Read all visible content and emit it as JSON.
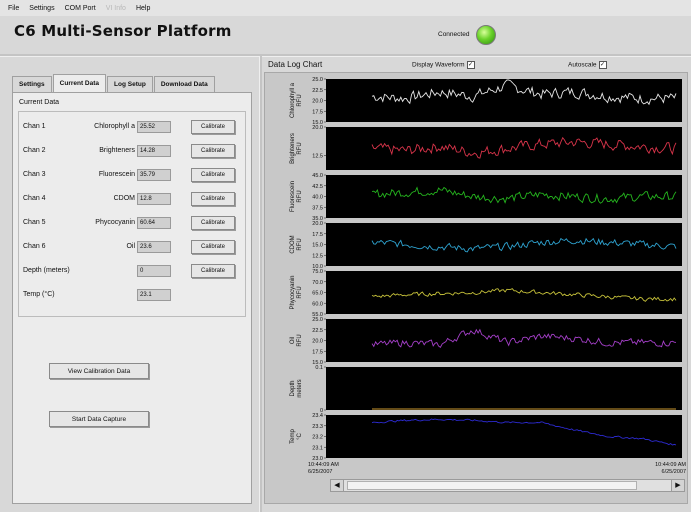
{
  "menu": [
    {
      "label": "File",
      "enabled": true
    },
    {
      "label": "Settings",
      "enabled": true
    },
    {
      "label": "COM Port",
      "enabled": true
    },
    {
      "label": "VI Info",
      "enabled": false
    },
    {
      "label": "Help",
      "enabled": true
    }
  ],
  "app_title": "C6 Multi-Sensor Platform",
  "status": {
    "label": "Connected",
    "led_color": "#4fc21b"
  },
  "tabs": [
    {
      "label": "Settings",
      "active": false
    },
    {
      "label": "Current Data",
      "active": true
    },
    {
      "label": "Log Setup",
      "active": false
    },
    {
      "label": "Download Data",
      "active": false
    }
  ],
  "current_data": {
    "title": "Current Data",
    "calibrate_label": "Calibrate",
    "channels": [
      {
        "chan": "Chan 1",
        "sensor": "Chlorophyll a",
        "value": "25.52",
        "calibrate": true
      },
      {
        "chan": "Chan 2",
        "sensor": "Brighteners",
        "value": "14.28",
        "calibrate": true
      },
      {
        "chan": "Chan 3",
        "sensor": "Fluorescein",
        "value": "35.79",
        "calibrate": true
      },
      {
        "chan": "Chan 4",
        "sensor": "CDOM",
        "value": "12.8",
        "calibrate": true
      },
      {
        "chan": "Chan 5",
        "sensor": "Phycocyanin",
        "value": "60.64",
        "calibrate": true
      },
      {
        "chan": "Chan 6",
        "sensor": "Oil",
        "value": "23.6",
        "calibrate": true
      },
      {
        "chan": "Depth (meters)",
        "sensor": "",
        "value": "0",
        "calibrate": true
      },
      {
        "chan": "Temp (°C)",
        "sensor": "",
        "value": "23.1",
        "calibrate": false
      }
    ],
    "view_calibration_label": "View Calibration Data",
    "start_capture_label": "Start Data Capture"
  },
  "chart": {
    "title": "Data Log Chart",
    "display_waveform_label": "Display Waveform",
    "display_waveform_checked": true,
    "autoscale_label": "Autoscale",
    "autoscale_checked": true,
    "x_start": {
      "time": "10:44:09 AM",
      "date": "6/25/2007"
    },
    "x_end": {
      "time": "10:44:09 AM",
      "date": "6/25/2007"
    }
  },
  "chart_data": {
    "type": "line",
    "series": [
      {
        "name": "Chlorophyll a",
        "unit": "RFU",
        "color": "#e6e6e6",
        "ylim": [
          15,
          25
        ],
        "ticks": [
          "25.0",
          "22.5",
          "20.0",
          "17.5",
          "15.0"
        ],
        "trend": [
          21,
          20.5,
          22,
          21,
          23.5,
          21.5,
          22,
          21,
          20.5,
          20.5
        ],
        "noise": 1.2
      },
      {
        "name": "Brighteners",
        "unit": "RFU",
        "color": "#d8344a",
        "ylim": [
          10,
          20
        ],
        "ticks": [
          "20.0",
          "",
          "12.5",
          ""
        ],
        "trend": [
          15,
          14.5,
          15.5,
          14,
          15,
          16,
          16.5,
          16,
          15.5,
          15
        ],
        "noise": 1.2
      },
      {
        "name": "Fluorescein",
        "unit": "RFU",
        "color": "#25b51e",
        "ylim": [
          35,
          45
        ],
        "ticks": [
          "45.0",
          "42.5",
          "40.0",
          "37.5",
          "35.0"
        ],
        "trend": [
          40.5,
          41,
          41.5,
          40,
          39.5,
          40.5,
          40,
          39.5,
          40,
          40
        ],
        "noise": 1.0
      },
      {
        "name": "CDOM",
        "unit": "RFU",
        "color": "#2ea2cf",
        "ylim": [
          10,
          20
        ],
        "ticks": [
          "20.0",
          "17.5",
          "15.0",
          "12.5",
          "10.0"
        ],
        "trend": [
          15.5,
          15,
          14.5,
          14,
          14.5,
          15.5,
          16,
          15.5,
          15,
          14.5
        ],
        "noise": 0.8
      },
      {
        "name": "Phycocyanin",
        "unit": "RFU",
        "color": "#c7c23a",
        "ylim": [
          55,
          75
        ],
        "ticks": [
          "75.0",
          "70.0",
          "65.0",
          "60.0",
          "55.0"
        ],
        "trend": [
          63,
          64,
          64.5,
          65,
          66,
          65,
          64,
          63,
          62,
          62
        ],
        "noise": 0.9
      },
      {
        "name": "Oil",
        "unit": "RFU",
        "color": "#a43fc8",
        "ylim": [
          15,
          25
        ],
        "ticks": [
          "25.0",
          "22.5",
          "20.0",
          "17.5",
          "15.0"
        ],
        "trend": [
          19,
          19.5,
          19,
          22.5,
          19.5,
          21,
          20.5,
          19.5,
          19.5,
          19.5
        ],
        "noise": 0.8
      },
      {
        "name": "Depth",
        "unit": "meters",
        "color": "#c8962e",
        "ylim": [
          0,
          0.1
        ],
        "ticks": [
          "0.1",
          "0"
        ],
        "trend": [
          0.001,
          0.001,
          0.001,
          0.001,
          0.001,
          0.001,
          0.001,
          0.001,
          0.001,
          0.001
        ],
        "noise": 0
      },
      {
        "name": "Temp",
        "unit": "°C",
        "color": "#2c2ad0",
        "ylim": [
          23.0,
          23.4
        ],
        "ticks": [
          "23.4",
          "23.3",
          "23.2",
          "23.1",
          "23.0"
        ],
        "trend": [
          23.33,
          23.35,
          23.36,
          23.35,
          23.33,
          23.33,
          23.26,
          23.2,
          23.18,
          23.12
        ],
        "noise": 0.008
      }
    ]
  }
}
